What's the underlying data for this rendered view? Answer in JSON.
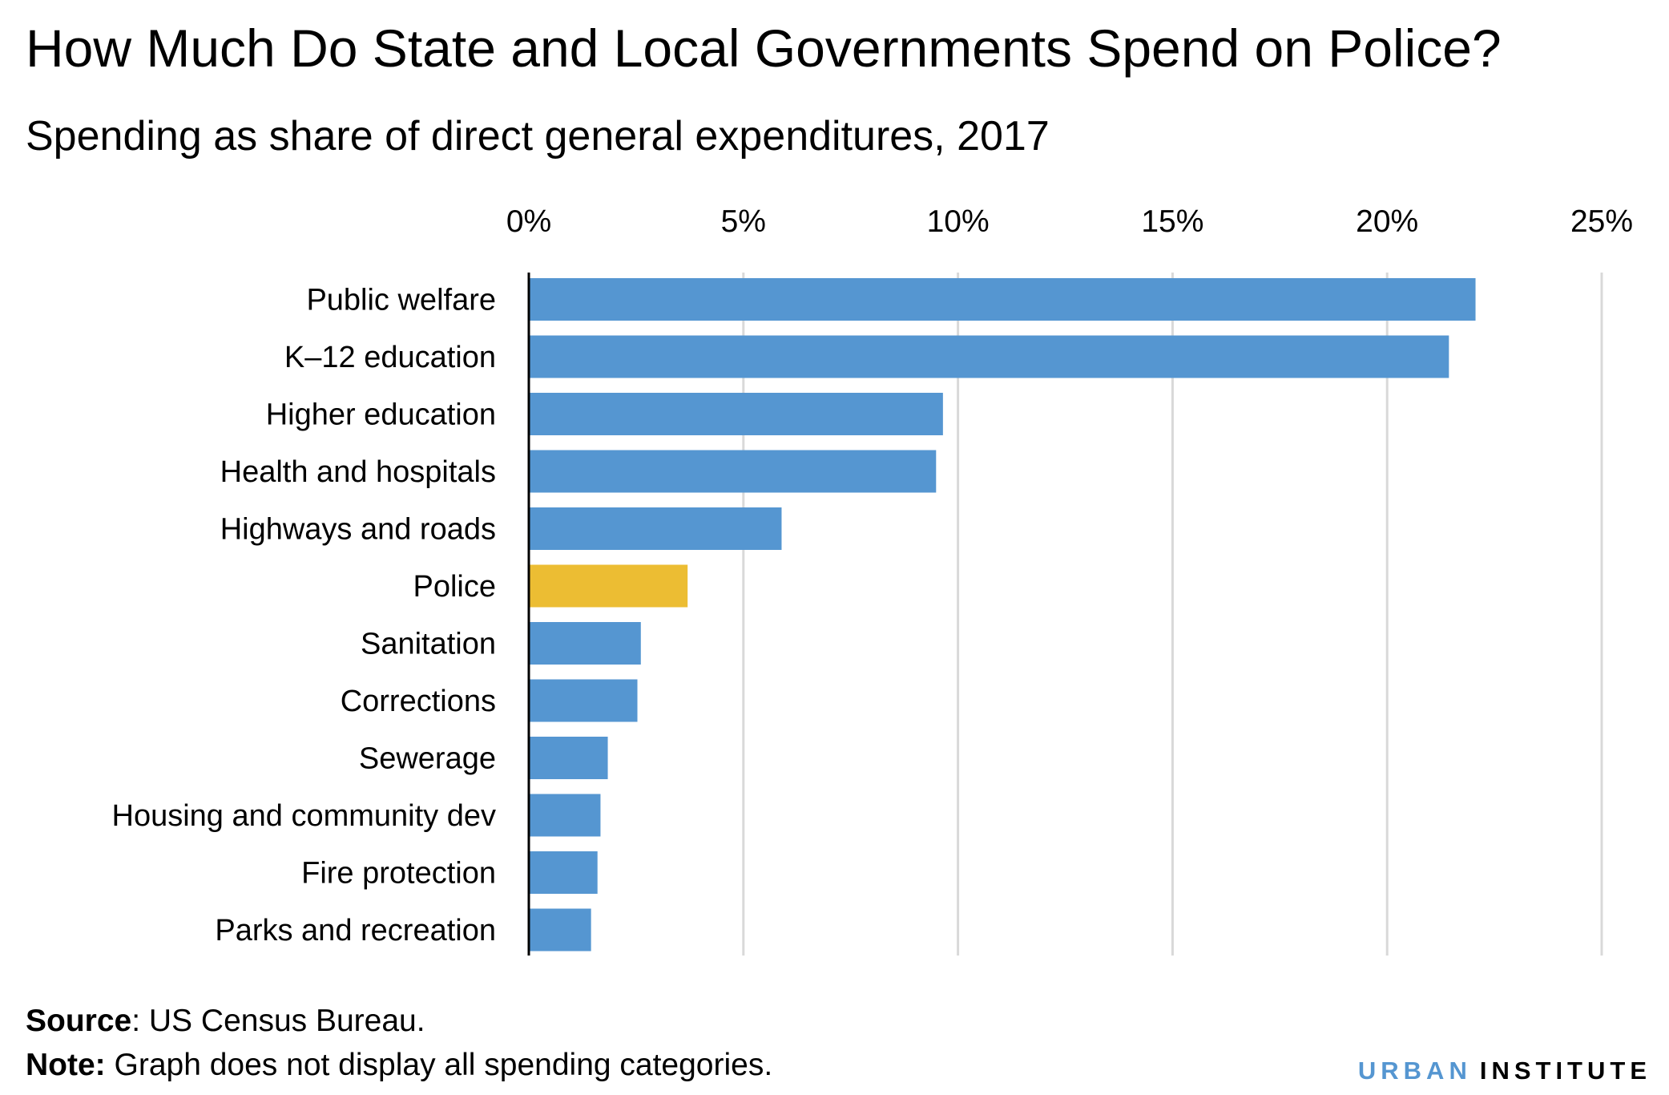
{
  "title": "How Much Do State and Local Governments Spend on Police?",
  "subtitle": "Spending as share of direct general expenditures, 2017",
  "source_label": "Source",
  "source_text": ": US Census Bureau.",
  "note_label": "Note:",
  "note_text": " Graph does not display all spending categories.",
  "logo": {
    "urban": "URBAN",
    "institute": "INSTITUTE"
  },
  "colors": {
    "default": "#5596d1",
    "highlight": "#ecbd33",
    "grid": "#d9d9d9",
    "axis": "#000000"
  },
  "chart_data": {
    "type": "bar",
    "orientation": "horizontal",
    "title": "How Much Do State and Local Governments Spend on Police?",
    "subtitle": "Spending as share of direct general expenditures, 2017",
    "categories": [
      "Public welfare",
      "K–12 education",
      "Higher education",
      "Health and hospitals",
      "Highways and roads",
      "Police",
      "Sanitation",
      "Corrections",
      "Sewerage",
      "Housing and community dev",
      "Fire protection",
      "Parks and recreation"
    ],
    "values": [
      22.06,
      21.44,
      9.65,
      9.49,
      5.89,
      3.7,
      2.61,
      2.53,
      1.84,
      1.67,
      1.6,
      1.45
    ],
    "highlight": "Police",
    "unit": "%",
    "xlim": [
      0,
      25
    ],
    "ticks": [
      0,
      5,
      10,
      15,
      20,
      25
    ],
    "tick_labels": [
      "0%",
      "5%",
      "10%",
      "15%",
      "20%",
      "25%"
    ],
    "axis_position": "top",
    "grid": true,
    "legend": "none"
  }
}
